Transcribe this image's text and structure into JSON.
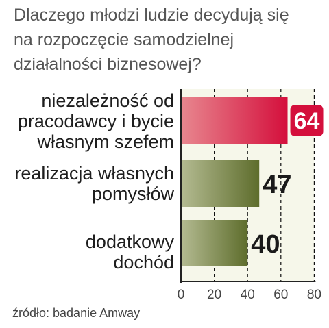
{
  "title_lines": [
    "Dlaczego młodzi ludzie decydują się",
    "na rozpoczęcie samodzielnej",
    "działalności biznesowej?"
  ],
  "source": "źródło: badanie Amway",
  "chart_data": {
    "type": "bar",
    "orientation": "horizontal",
    "title": "Dlaczego młodzi ludzie decydują się na rozpoczęcie samodzielnej działalności biznesowej?",
    "categories": [
      [
        "niezależność od",
        "pracodawcy i bycie",
        "własnym szefem"
      ],
      [
        "realizacja własnych",
        "pomysłów"
      ],
      [
        "dodatkowy",
        "dochód"
      ]
    ],
    "values": [
      64,
      47,
      40
    ],
    "xlim": [
      0,
      80
    ],
    "xticks": [
      0,
      20,
      40,
      60,
      80
    ],
    "grid": "vertical dashed",
    "colors": {
      "highlight_start": "#e8878f",
      "highlight_end": "#d40f3c",
      "bar_start": "#b4bb92",
      "bar_end": "#5e6d2c",
      "axis": "#222222"
    }
  }
}
